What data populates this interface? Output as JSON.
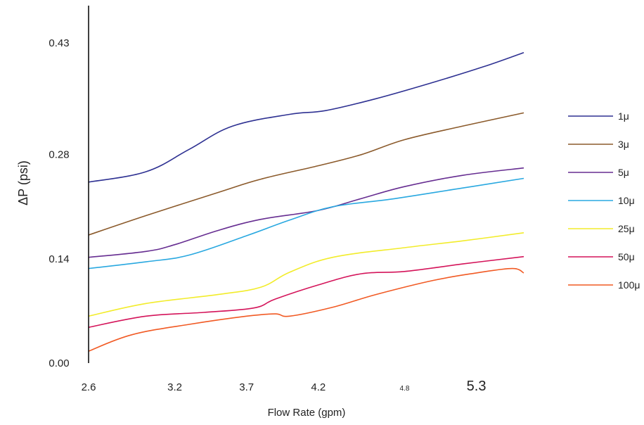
{
  "chart_data": {
    "type": "line",
    "title": "",
    "xlabel": "Flow Rate (gpm)",
    "ylabel": "ΔP (psi)",
    "xlim": [
      2.6,
      5.63
    ],
    "ylim": [
      0.0,
      0.48
    ],
    "x_ticks": [
      {
        "value": 2.6,
        "label": "2.6",
        "size": "normal"
      },
      {
        "value": 3.2,
        "label": "3.2",
        "size": "normal"
      },
      {
        "value": 3.7,
        "label": "3.7",
        "size": "normal"
      },
      {
        "value": 4.2,
        "label": "4.2",
        "size": "normal"
      },
      {
        "value": 4.8,
        "label": "4.8",
        "size": "small"
      },
      {
        "value": 5.3,
        "label": "5.3",
        "size": "large"
      }
    ],
    "y_ticks": [
      {
        "value": 0.0,
        "label": "0.00"
      },
      {
        "value": 0.14,
        "label": "0.14"
      },
      {
        "value": 0.28,
        "label": "0.28"
      },
      {
        "value": 0.43,
        "label": "0.43"
      }
    ],
    "grid": false,
    "legend_position": "right",
    "series": [
      {
        "name": "1μ",
        "color": "#2e3192",
        "x": [
          2.6,
          3.0,
          3.3,
          3.6,
          4.0,
          4.25,
          4.6,
          5.0,
          5.35,
          5.63
        ],
        "y": [
          0.243,
          0.257,
          0.287,
          0.318,
          0.334,
          0.339,
          0.355,
          0.377,
          0.398,
          0.417
        ]
      },
      {
        "name": "3μ",
        "color": "#8b5a2b",
        "x": [
          2.6,
          3.0,
          3.5,
          3.8,
          4.2,
          4.5,
          4.8,
          5.2,
          5.63
        ],
        "y": [
          0.172,
          0.198,
          0.229,
          0.247,
          0.265,
          0.28,
          0.3,
          0.318,
          0.336
        ]
      },
      {
        "name": "5μ",
        "color": "#662d91",
        "x": [
          2.6,
          3.0,
          3.2,
          3.5,
          3.8,
          4.2,
          4.5,
          4.8,
          5.2,
          5.63
        ],
        "y": [
          0.142,
          0.15,
          0.159,
          0.178,
          0.193,
          0.205,
          0.221,
          0.237,
          0.252,
          0.262
        ]
      },
      {
        "name": "10μ",
        "color": "#29a8e0",
        "x": [
          2.6,
          3.0,
          3.3,
          3.7,
          4.0,
          4.3,
          4.7,
          5.2,
          5.63
        ],
        "y": [
          0.127,
          0.136,
          0.145,
          0.171,
          0.192,
          0.21,
          0.22,
          0.235,
          0.248
        ]
      },
      {
        "name": "25μ",
        "color": "#f2ec2b",
        "x": [
          2.6,
          3.0,
          3.5,
          3.8,
          4.0,
          4.3,
          4.8,
          5.2,
          5.63
        ],
        "y": [
          0.063,
          0.08,
          0.092,
          0.102,
          0.122,
          0.142,
          0.155,
          0.164,
          0.175
        ]
      },
      {
        "name": "50μ",
        "color": "#d4145a",
        "x": [
          2.6,
          3.0,
          3.4,
          3.75,
          3.9,
          4.2,
          4.5,
          4.8,
          5.2,
          5.63
        ],
        "y": [
          0.048,
          0.063,
          0.068,
          0.074,
          0.086,
          0.105,
          0.12,
          0.123,
          0.133,
          0.143
        ]
      },
      {
        "name": "100μ",
        "color": "#f15a24",
        "x": [
          2.6,
          2.9,
          3.3,
          3.7,
          3.9,
          4.0,
          4.3,
          4.6,
          5.0,
          5.3,
          5.55,
          5.63
        ],
        "y": [
          0.016,
          0.038,
          0.052,
          0.063,
          0.066,
          0.063,
          0.075,
          0.092,
          0.111,
          0.121,
          0.127,
          0.121
        ]
      }
    ]
  }
}
